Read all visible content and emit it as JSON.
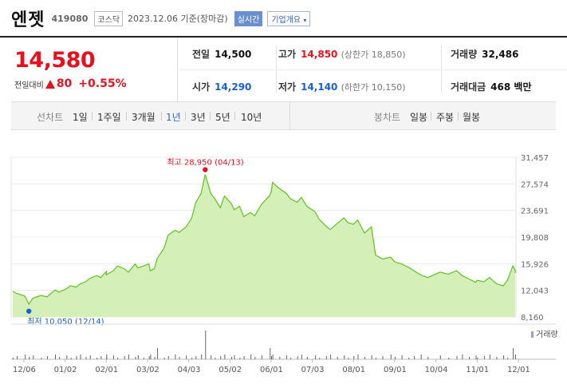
{
  "header": {
    "name": "엔젯",
    "code": "419080",
    "market": "코스닥",
    "date": "2023.12.06",
    "basis": "기준(장마감)",
    "live_label": "실시간",
    "info_label": "기업개요",
    "info_icon": "chevron-down-icon"
  },
  "price": {
    "current": "14,580",
    "change_label": "전일대비",
    "change_value": "80",
    "change_pct": "+0.55%",
    "direction_icon": "up-triangle-icon",
    "up_color": "#e8101e",
    "down_color": "#1a5fd1"
  },
  "quote": {
    "prev_close_label": "전일",
    "prev_close": "14,500",
    "high_label": "고가",
    "high": "14,850",
    "upper_limit": "(상한가 18,850)",
    "volume_label": "거래량",
    "volume": "32,486",
    "open_label": "시가",
    "open": "14,290",
    "low_label": "저가",
    "low": "14,140",
    "lower_limit": "(하한가 10,150)",
    "amount_label": "거래대금",
    "amount": "468 백만"
  },
  "periods": {
    "line_label": "선차트",
    "line_items": [
      "1일",
      "1주일",
      "3개월",
      "1년",
      "3년",
      "5년",
      "10년"
    ],
    "selected": "1년",
    "candle_label": "봉차트",
    "candle_items": [
      "일봉",
      "주봉",
      "월봉"
    ]
  },
  "chart_data": {
    "type": "area",
    "y_ticks": [
      "31,457",
      "27,574",
      "23,691",
      "19,808",
      "15,926",
      "12,043",
      "8,160"
    ],
    "ylim": [
      8160,
      31457
    ],
    "x_ticks": [
      "12/06",
      "01/02",
      "02/01",
      "03/02",
      "04/03",
      "05/02",
      "06/01",
      "07/03",
      "08/01",
      "09/01",
      "10/04",
      "11/01",
      "12/01"
    ],
    "max_label": "최고 28,950 (04/13)",
    "min_label": "최저 10,050 (12/14)",
    "volume_legend": "거래량",
    "line_color": "#5dc21e",
    "fill_color": "#d4f0b8",
    "max_color": "#e8101e",
    "min_color": "#1a5fd1",
    "points": [
      [
        "12/06",
        11900
      ],
      [
        "12/08",
        11600
      ],
      [
        "12/12",
        11200
      ],
      [
        "12/14",
        10050
      ],
      [
        "12/16",
        10900
      ],
      [
        "12/20",
        11300
      ],
      [
        "12/23",
        11100
      ],
      [
        "12/27",
        12100
      ],
      [
        "12/29",
        11800
      ],
      [
        "01/02",
        12300
      ],
      [
        "01/05",
        12700
      ],
      [
        "01/09",
        12500
      ],
      [
        "01/12",
        13000
      ],
      [
        "01/16",
        13300
      ],
      [
        "01/19",
        13800
      ],
      [
        "01/24",
        14200
      ],
      [
        "01/27",
        13900
      ],
      [
        "01/31",
        14800
      ],
      [
        "02/01",
        14300
      ],
      [
        "02/06",
        14900
      ],
      [
        "02/09",
        15600
      ],
      [
        "02/14",
        15200
      ],
      [
        "02/17",
        14700
      ],
      [
        "02/22",
        15900
      ],
      [
        "02/24",
        15300
      ],
      [
        "02/28",
        15600
      ],
      [
        "03/02",
        15900
      ],
      [
        "03/03",
        14900
      ],
      [
        "03/06",
        15200
      ],
      [
        "03/08",
        16700
      ],
      [
        "03/13",
        18200
      ],
      [
        "03/16",
        20100
      ],
      [
        "03/21",
        20800
      ],
      [
        "03/24",
        20500
      ],
      [
        "03/29",
        21300
      ],
      [
        "04/03",
        22500
      ],
      [
        "04/06",
        24800
      ],
      [
        "04/10",
        26200
      ],
      [
        "04/13",
        28950
      ],
      [
        "04/17",
        26200
      ],
      [
        "04/20",
        25400
      ],
      [
        "04/24",
        24100
      ],
      [
        "04/27",
        25800
      ],
      [
        "05/02",
        24700
      ],
      [
        "05/04",
        23800
      ],
      [
        "05/08",
        24300
      ],
      [
        "05/11",
        22800
      ],
      [
        "05/16",
        23400
      ],
      [
        "05/19",
        22900
      ],
      [
        "05/24",
        24600
      ],
      [
        "05/30",
        25900
      ],
      [
        "06/01",
        26400
      ],
      [
        "06/02",
        27800
      ],
      [
        "06/07",
        26900
      ],
      [
        "06/12",
        26200
      ],
      [
        "06/15",
        25400
      ],
      [
        "06/20",
        24900
      ],
      [
        "06/23",
        25600
      ],
      [
        "06/27",
        24300
      ],
      [
        "07/03",
        23500
      ],
      [
        "07/06",
        22400
      ],
      [
        "07/11",
        21400
      ],
      [
        "07/14",
        20900
      ],
      [
        "07/19",
        21800
      ],
      [
        "07/24",
        22600
      ],
      [
        "07/27",
        21900
      ],
      [
        "08/01",
        21700
      ],
      [
        "08/04",
        22300
      ],
      [
        "08/09",
        20400
      ],
      [
        "08/14",
        21300
      ],
      [
        "08/17",
        17200
      ],
      [
        "08/22",
        16600
      ],
      [
        "08/28",
        16900
      ],
      [
        "09/01",
        16200
      ],
      [
        "09/06",
        15900
      ],
      [
        "09/11",
        15400
      ],
      [
        "09/15",
        14900
      ],
      [
        "09/20",
        14300
      ],
      [
        "09/25",
        13900
      ],
      [
        "10/04",
        14700
      ],
      [
        "10/10",
        14400
      ],
      [
        "10/16",
        14900
      ],
      [
        "10/20",
        14200
      ],
      [
        "10/25",
        13700
      ],
      [
        "10/30",
        13200
      ],
      [
        "11/01",
        13500
      ],
      [
        "11/06",
        13300
      ],
      [
        "11/10",
        13900
      ],
      [
        "11/15",
        13000
      ],
      [
        "11/20",
        12700
      ],
      [
        "11/23",
        13500
      ],
      [
        "11/27",
        15600
      ],
      [
        "11/29",
        15000
      ],
      [
        "12/01",
        14800
      ],
      [
        "12/04",
        14900
      ],
      [
        "12/06",
        14580
      ]
    ],
    "volume_spike_dates": [
      "03/08",
      "04/13",
      "05/30",
      "11/27"
    ]
  }
}
